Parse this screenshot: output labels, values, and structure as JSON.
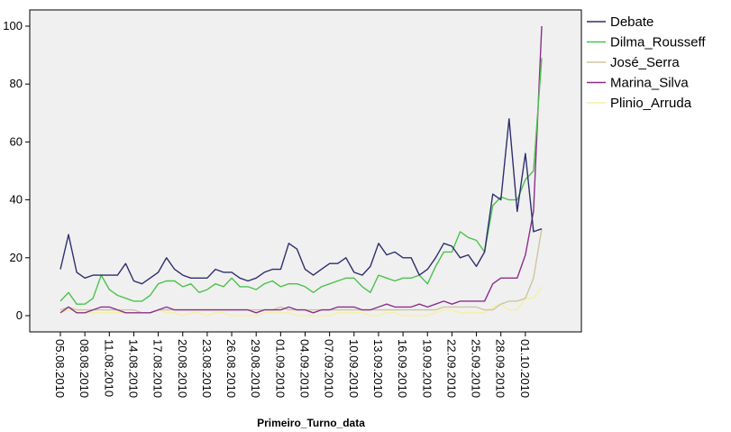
{
  "chart_data": {
    "type": "line",
    "xlabel": "Primeiro_Turno_data",
    "ylabel": "",
    "ylim": [
      -5,
      105
    ],
    "yticks": [
      0,
      20,
      40,
      60,
      80,
      100
    ],
    "grid": false,
    "legend_position": "right",
    "x_start": "05.08.2010",
    "x_tick_labels": [
      "05.08.2010",
      "08.08.2010",
      "11.08.2010",
      "14.08.2010",
      "17.08.2010",
      "20.08.2010",
      "23.08.2010",
      "26.08.2010",
      "29.08.2010",
      "01.09.2010",
      "04.09.2010",
      "07.09.2010",
      "10.09.2010",
      "13.09.2010",
      "16.09.2010",
      "19.09.2010",
      "22.09.2010",
      "25.09.2010",
      "28.09.2010",
      "01.10.2010"
    ],
    "series": [
      {
        "name": "Debate",
        "color": "#2e2e6e",
        "values": [
          16,
          28,
          15,
          13,
          14,
          14,
          14,
          14,
          18,
          12,
          11,
          13,
          15,
          20,
          16,
          14,
          13,
          13,
          13,
          16,
          15,
          15,
          13,
          12,
          13,
          15,
          16,
          16,
          25,
          23,
          16,
          14,
          16,
          18,
          18,
          20,
          15,
          14,
          17,
          25,
          21,
          22,
          20,
          20,
          14,
          16,
          20,
          25,
          24,
          20,
          21,
          17,
          22,
          42,
          40,
          68,
          36,
          56,
          29,
          30
        ]
      },
      {
        "name": "Dilma_Rousseff",
        "color": "#4cc24c",
        "values": [
          5,
          8,
          4,
          4,
          6,
          14,
          9,
          7,
          6,
          5,
          5,
          7,
          11,
          12,
          12,
          10,
          11,
          8,
          9,
          11,
          10,
          13,
          10,
          10,
          9,
          11,
          12,
          10,
          11,
          11,
          10,
          8,
          10,
          11,
          12,
          13,
          13,
          10,
          8,
          14,
          13,
          12,
          13,
          13,
          14,
          11,
          17,
          22,
          22,
          29,
          27,
          26,
          22,
          38,
          41,
          40,
          40,
          47,
          50,
          89
        ]
      },
      {
        "name": "José_Serra",
        "color": "#cdc5a0",
        "values": [
          2,
          3,
          2,
          2,
          2,
          2,
          2,
          2,
          2,
          2,
          1,
          1,
          2,
          2,
          2,
          2,
          2,
          2,
          2,
          2,
          2,
          2,
          2,
          2,
          2,
          2,
          2,
          3,
          2,
          2,
          2,
          2,
          2,
          2,
          2,
          2,
          2,
          2,
          2,
          2,
          2,
          2,
          2,
          2,
          2,
          2,
          2,
          3,
          3,
          3,
          3,
          3,
          2,
          2,
          4,
          5,
          5,
          6,
          13,
          30
        ]
      },
      {
        "name": "Marina_Silva",
        "color": "#8b2f8b",
        "values": [
          1,
          3,
          1,
          1,
          2,
          3,
          3,
          2,
          1,
          1,
          1,
          1,
          2,
          3,
          2,
          2,
          2,
          2,
          2,
          2,
          2,
          2,
          2,
          2,
          1,
          2,
          2,
          2,
          3,
          2,
          2,
          1,
          2,
          2,
          3,
          3,
          3,
          2,
          2,
          3,
          4,
          3,
          3,
          3,
          4,
          3,
          4,
          5,
          4,
          5,
          5,
          5,
          5,
          11,
          13,
          13,
          13,
          21,
          36,
          100
        ]
      },
      {
        "name": "Plinio_Arruda",
        "color": "#f5f0a0",
        "values": [
          1,
          2,
          2,
          1,
          1,
          1,
          1,
          1,
          1,
          1,
          1,
          1,
          2,
          1,
          1,
          0,
          1,
          1,
          0,
          1,
          1,
          0,
          0,
          0,
          0,
          1,
          1,
          1,
          1,
          0,
          0,
          0,
          0,
          0,
          1,
          1,
          1,
          1,
          0,
          0,
          1,
          1,
          0,
          0,
          0,
          0,
          1,
          2,
          2,
          1,
          1,
          1,
          1,
          3,
          4,
          2,
          2,
          6,
          6,
          10
        ]
      }
    ]
  }
}
